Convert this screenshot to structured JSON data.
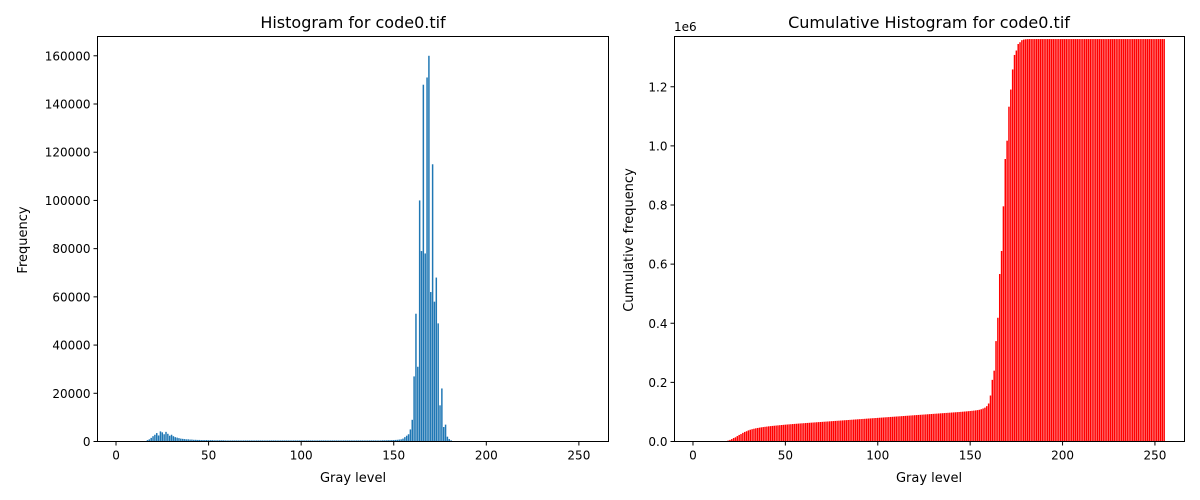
{
  "chart_data": [
    {
      "type": "bar",
      "title": "Histogram for code0.tif",
      "xlabel": "Gray level",
      "ylabel": "Frequency",
      "xlim": [
        -10,
        266
      ],
      "ylim": [
        0,
        168000
      ],
      "xticks": [
        0,
        50,
        100,
        150,
        200,
        250
      ],
      "yticks": [
        0,
        20000,
        40000,
        60000,
        80000,
        100000,
        120000,
        140000,
        160000
      ],
      "bar_color": "#1f77b4",
      "grid": false,
      "x_start": 0,
      "values": [
        0,
        0,
        0,
        0,
        0,
        0,
        0,
        0,
        0,
        0,
        0,
        0,
        0,
        0,
        0,
        0,
        200,
        600,
        900,
        1500,
        2200,
        2800,
        3500,
        2500,
        4200,
        3800,
        3000,
        4000,
        3200,
        2400,
        2800,
        2200,
        1800,
        1600,
        1400,
        1200,
        1100,
        1000,
        900,
        900,
        800,
        800,
        700,
        700,
        650,
        650,
        600,
        600,
        600,
        600,
        550,
        550,
        550,
        500,
        500,
        500,
        500,
        500,
        500,
        450,
        450,
        450,
        450,
        450,
        450,
        450,
        450,
        450,
        450,
        450,
        450,
        450,
        450,
        450,
        450,
        450,
        450,
        450,
        450,
        450,
        450,
        450,
        450,
        450,
        450,
        450,
        450,
        450,
        450,
        450,
        450,
        450,
        450,
        450,
        450,
        450,
        450,
        450,
        450,
        450,
        450,
        450,
        450,
        450,
        450,
        450,
        450,
        450,
        450,
        450,
        450,
        450,
        450,
        450,
        450,
        450,
        450,
        450,
        450,
        450,
        450,
        450,
        450,
        450,
        450,
        450,
        450,
        450,
        450,
        450,
        450,
        450,
        450,
        450,
        450,
        450,
        450,
        450,
        450,
        450,
        450,
        450,
        450,
        450,
        500,
        500,
        500,
        550,
        550,
        600,
        600,
        650,
        700,
        800,
        900,
        1200,
        1800,
        2400,
        3000,
        5000,
        9000,
        27000,
        53000,
        31000,
        100000,
        79000,
        148000,
        78000,
        151000,
        160000,
        62000,
        115000,
        58000,
        68000,
        49000,
        15000,
        22000,
        6000,
        7000,
        2000,
        1000,
        500,
        200,
        100,
        0,
        0,
        0,
        0,
        0,
        0,
        0,
        0,
        0,
        0,
        0,
        0,
        0,
        0,
        0,
        0,
        0,
        0,
        0,
        0,
        0,
        0,
        0,
        0,
        0,
        0,
        0,
        0,
        0,
        0,
        0,
        0,
        0,
        0,
        0,
        0,
        0,
        0,
        0,
        0,
        0,
        0,
        0,
        0,
        0,
        0,
        0,
        0,
        0,
        0,
        0,
        0,
        0,
        0,
        0,
        0,
        0,
        0,
        0,
        0,
        0,
        0,
        0,
        0,
        0,
        0,
        0,
        0,
        0,
        0,
        0,
        0
      ]
    },
    {
      "type": "bar",
      "title": "Cumulative Histogram for code0.tif",
      "xlabel": "Gray level",
      "ylabel": "Cumulative frequency",
      "offset_text": "1e6",
      "xlim": [
        -10,
        266
      ],
      "ylim": [
        0,
        1.37
      ],
      "xticks": [
        0,
        50,
        100,
        150,
        200,
        250
      ],
      "yticks": [
        0.0,
        0.2,
        0.4,
        0.6,
        0.8,
        1.0,
        1.2
      ],
      "ytick_labels": [
        "0.0",
        "0.2",
        "0.4",
        "0.6",
        "0.8",
        "1.0",
        "1.2"
      ],
      "y_units": "x1e6 (cumulative sum of the Frequency series)",
      "bar_color": "#ff0000",
      "grid": false
    }
  ]
}
